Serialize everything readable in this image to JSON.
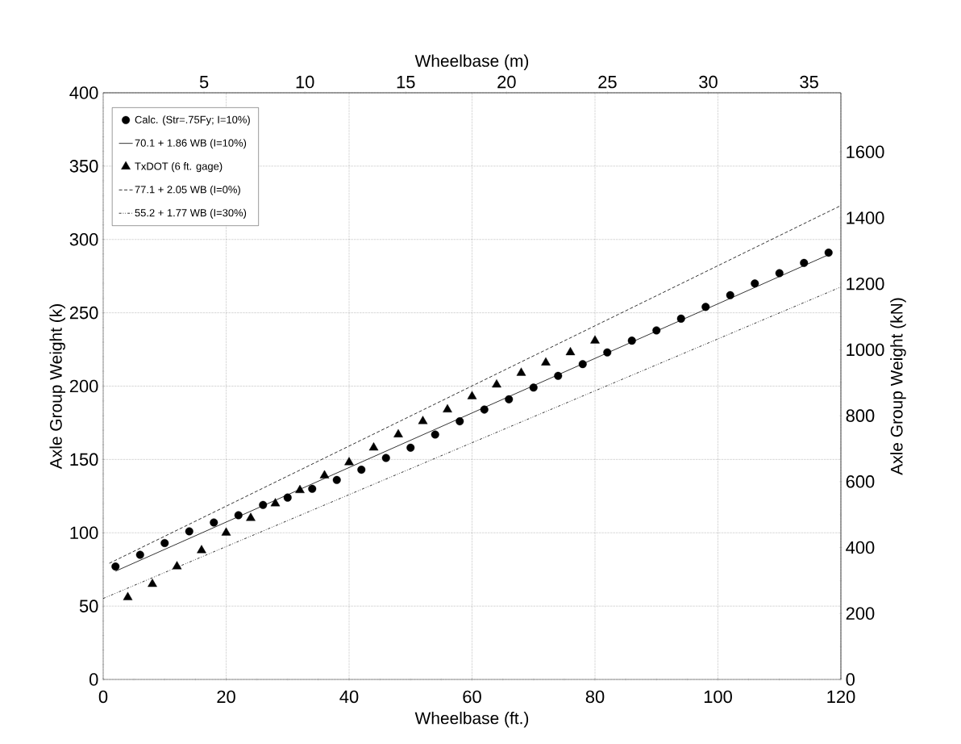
{
  "chart_data": {
    "type": "scatter",
    "xlabel": "Wheelbase (ft.)",
    "ylabel": "Axle Group Weight  (k)",
    "x2label": "Wheelbase  (m)",
    "y2label": "Axle Group Weight  (kN)",
    "xlim": [
      0,
      120
    ],
    "ylim": [
      0,
      400
    ],
    "x2lim": [
      0,
      36.576
    ],
    "y2lim": [
      0,
      1779.3
    ],
    "xticks": [
      0,
      20,
      40,
      60,
      80,
      100,
      120
    ],
    "yticks": [
      0,
      50,
      100,
      150,
      200,
      250,
      300,
      350,
      400
    ],
    "x2ticks": [
      5,
      10,
      15,
      20,
      25,
      30,
      35
    ],
    "y2ticks": [
      0,
      200,
      400,
      600,
      800,
      1000,
      1200,
      1400,
      1600
    ],
    "grid": true,
    "legend": "top left",
    "series": [
      {
        "name": "Calc. (Str=.75Fy; I=10%)",
        "type": "scatter",
        "marker": "circle",
        "color": "#000000",
        "x": [
          2,
          6,
          10,
          14,
          18,
          22,
          26,
          30,
          34,
          38,
          42,
          46,
          50,
          54,
          58,
          62,
          66,
          70,
          74,
          78,
          82,
          86,
          90,
          94,
          98,
          102,
          106,
          110,
          114,
          118
        ],
        "values": [
          77,
          85,
          93,
          101,
          107,
          112,
          119,
          124,
          130,
          136,
          143,
          151,
          158,
          167,
          176,
          184,
          191,
          199,
          207,
          215,
          223,
          231,
          238,
          246,
          254,
          262,
          270,
          277,
          284,
          291
        ]
      },
      {
        "name": "70.1 + 1.86 WB (I=10%)",
        "type": "line",
        "line_style": "solid",
        "color": "#000000",
        "x": [
          2,
          118
        ],
        "values": [
          73.8,
          289.6
        ]
      },
      {
        "name": "TxDOT (6 ft. gage)",
        "type": "scatter",
        "marker": "triangle",
        "color": "#000000",
        "x": [
          4,
          8,
          12,
          16,
          20,
          24,
          28,
          32,
          36,
          40,
          44,
          48,
          52,
          56,
          60,
          64,
          68,
          72,
          76,
          80
        ],
        "values": [
          56,
          65,
          77,
          88,
          100,
          110,
          120,
          129,
          139,
          148,
          158,
          167,
          176,
          184,
          193,
          201,
          209,
          216,
          223,
          231
        ]
      },
      {
        "name": "77.1 + 2.05 WB (I=0%)",
        "type": "line",
        "line_style": "dashed",
        "color": "#000000",
        "x": [
          1,
          120
        ],
        "values": [
          79.2,
          323.1
        ]
      },
      {
        "name": "55.2 + 1.77 WB (I=30%)",
        "type": "line",
        "line_style": "dotted",
        "color": "#000000",
        "x": [
          0,
          120
        ],
        "values": [
          55.2,
          267.6
        ]
      }
    ]
  }
}
